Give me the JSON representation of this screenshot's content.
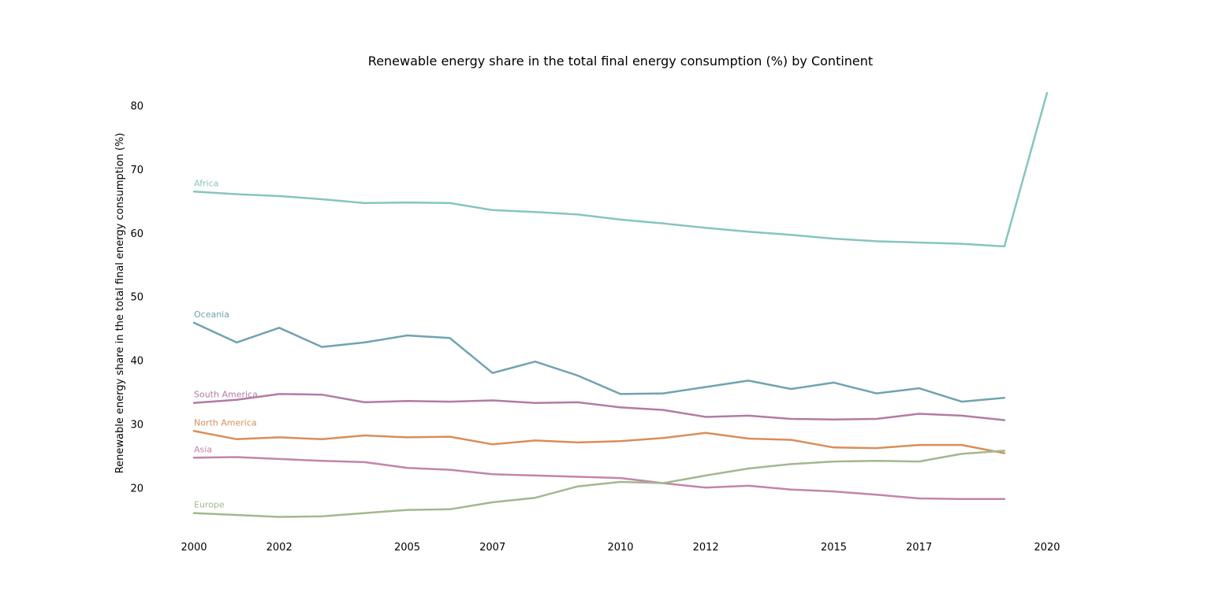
{
  "chart_data": {
    "type": "line",
    "title": "Renewable energy share in the total final energy consumption (%) by Continent",
    "xlabel": "",
    "ylabel": "Renewable energy share in the total final energy consumption (%)",
    "xlim": [
      2000,
      2020
    ],
    "ylim": [
      11.5,
      82
    ],
    "x_ticks": [
      2000,
      2002,
      2005,
      2007,
      2010,
      2012,
      2015,
      2017,
      2020
    ],
    "y_ticks": [
      20,
      30,
      40,
      50,
      60,
      70,
      80
    ],
    "grid": false,
    "legend": "labels at start of each line",
    "x": [
      2000,
      2001,
      2002,
      2003,
      2004,
      2005,
      2006,
      2007,
      2008,
      2009,
      2010,
      2011,
      2012,
      2013,
      2014,
      2015,
      2016,
      2017,
      2018,
      2019,
      2020
    ],
    "series": [
      {
        "name": "Africa",
        "color": "#86c5bf",
        "values": [
          66.5,
          66.1,
          65.8,
          65.3,
          64.7,
          64.8,
          64.7,
          63.6,
          63.3,
          62.9,
          62.1,
          61.5,
          60.8,
          60.2,
          59.7,
          59.1,
          58.7,
          58.5,
          58.3,
          57.9,
          82.0
        ]
      },
      {
        "name": "Oceania",
        "color": "#6fa3b0",
        "values": [
          45.9,
          42.8,
          45.1,
          42.1,
          42.8,
          43.9,
          43.5,
          38.0,
          39.8,
          37.6,
          34.7,
          34.8,
          35.8,
          36.8,
          35.5,
          36.5,
          34.8,
          35.6,
          33.5,
          34.1,
          null
        ]
      },
      {
        "name": "South America",
        "color": "#b37ba4",
        "values": [
          33.3,
          33.8,
          34.7,
          34.6,
          33.4,
          33.6,
          33.5,
          33.7,
          33.3,
          33.4,
          32.6,
          32.2,
          31.1,
          31.3,
          30.8,
          30.7,
          30.8,
          31.6,
          31.3,
          30.6,
          null
        ]
      },
      {
        "name": "North America",
        "color": "#d98e58",
        "values": [
          28.9,
          27.6,
          27.9,
          27.6,
          28.2,
          27.9,
          28.0,
          26.8,
          27.4,
          27.1,
          27.3,
          27.8,
          28.6,
          27.7,
          27.5,
          26.3,
          26.2,
          26.7,
          26.7,
          25.4,
          null
        ]
      },
      {
        "name": "Asia",
        "color": "#c285ab",
        "values": [
          24.7,
          24.8,
          24.5,
          24.2,
          24.0,
          23.1,
          22.8,
          22.1,
          21.9,
          21.7,
          21.5,
          20.7,
          20.0,
          20.3,
          19.7,
          19.4,
          18.9,
          18.3,
          18.2,
          18.2,
          null
        ]
      },
      {
        "name": "Europe",
        "color": "#a3b88e",
        "values": [
          16.0,
          15.7,
          15.4,
          15.5,
          16.0,
          16.5,
          16.6,
          17.7,
          18.4,
          20.2,
          20.9,
          20.7,
          21.9,
          23.0,
          23.7,
          24.1,
          24.2,
          24.1,
          25.3,
          25.8,
          null
        ]
      }
    ]
  }
}
